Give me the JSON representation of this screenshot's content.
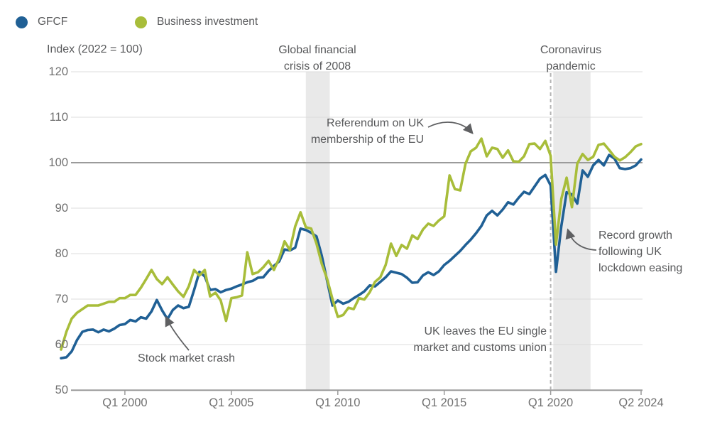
{
  "legend": {
    "items": [
      {
        "label": "GFCF",
        "color": "#206095"
      },
      {
        "label": "Business investment",
        "color": "#a8bd3a"
      }
    ]
  },
  "axis_note": "Index (2022 = 100)",
  "annotations": {
    "global_financial_crisis": "Global financial\ncrisis of 2008",
    "coronavirus_pandemic": "Coronavirus\npandemic",
    "referendum": "Referendum on UK\nmembership of the EU",
    "uk_leaves_eu": "UK leaves the EU single\nmarket and customs union",
    "record_growth": "Record growth\nfollowing UK\nlockdown easing",
    "stock_market_crash": "Stock market crash"
  },
  "chart_data": {
    "type": "line",
    "title": "",
    "xlabel": "",
    "ylabel": "Index (2022 = 100)",
    "x_unit": "quarter",
    "x_start": "Q1 1997",
    "x_end": "Q2 2024",
    "ylim": [
      50,
      120
    ],
    "y_ticks": [
      120,
      110,
      100,
      90,
      80,
      70,
      60,
      50
    ],
    "reference_line_y": 100,
    "grid": true,
    "legend_position": "top-left",
    "x_ticks": [
      {
        "label": "Q1 2000",
        "i": 12
      },
      {
        "label": "Q1 2005",
        "i": 32
      },
      {
        "label": "Q1 2010",
        "i": 52
      },
      {
        "label": "Q1 2015",
        "i": 72
      },
      {
        "label": "Q1 2020",
        "i": 92
      },
      {
        "label": "Q2 2024",
        "i": 109
      }
    ],
    "shaded_bands": [
      {
        "name": "global-financial-crisis",
        "from_i": 46,
        "to_i": 50.5
      },
      {
        "name": "coronavirus-pandemic",
        "from_i": 92.5,
        "to_i": 99.5
      }
    ],
    "dashed_line_i": 92,
    "series": [
      {
        "name": "GFCF",
        "color": "#206095",
        "values": [
          57.0,
          57.2,
          58.5,
          61.0,
          62.8,
          63.2,
          63.3,
          62.7,
          63.3,
          62.9,
          63.5,
          64.3,
          64.5,
          65.4,
          65.1,
          66.0,
          65.7,
          67.3,
          69.8,
          67.5,
          65.6,
          67.6,
          68.6,
          68.0,
          68.3,
          72.0,
          76.0,
          75.0,
          72.0,
          72.2,
          71.5,
          72.0,
          72.3,
          72.8,
          73.2,
          73.7,
          74.0,
          74.7,
          74.8,
          76.2,
          77.3,
          78.3,
          80.9,
          80.7,
          81.3,
          85.5,
          85.2,
          84.6,
          83.8,
          79.5,
          74.0,
          68.6,
          69.7,
          69.0,
          69.4,
          70.2,
          70.9,
          71.7,
          73.0,
          72.8,
          73.8,
          74.8,
          76.1,
          75.8,
          75.5,
          74.7,
          73.6,
          73.7,
          75.2,
          75.9,
          75.3,
          76.1,
          77.5,
          78.4,
          79.5,
          80.6,
          81.9,
          83.1,
          84.5,
          86.1,
          88.4,
          89.4,
          88.4,
          89.7,
          91.3,
          90.8,
          92.3,
          93.6,
          93.1,
          94.8,
          96.5,
          97.3,
          95.0,
          76.0,
          86.0,
          93.5,
          93.0,
          91.0,
          98.3,
          96.9,
          99.4,
          100.6,
          99.4,
          101.7,
          100.9,
          98.8,
          98.6,
          98.8,
          99.4,
          100.7
        ]
      },
      {
        "name": "Business investment",
        "color": "#a8bd3a",
        "values": [
          58.9,
          62.8,
          65.7,
          67.0,
          67.8,
          68.6,
          68.6,
          68.6,
          69.0,
          69.4,
          69.4,
          70.2,
          70.2,
          70.9,
          70.9,
          72.5,
          74.4,
          76.4,
          74.4,
          73.3,
          74.8,
          73.2,
          71.7,
          70.5,
          72.8,
          76.4,
          75.2,
          76.4,
          70.6,
          71.4,
          69.7,
          65.2,
          70.2,
          70.4,
          70.8,
          80.3,
          75.5,
          75.9,
          77.0,
          78.4,
          76.4,
          79.0,
          82.7,
          80.8,
          86.0,
          89.1,
          85.8,
          85.5,
          82.2,
          77.7,
          74.4,
          70.0,
          66.1,
          66.5,
          68.1,
          67.8,
          70.2,
          69.9,
          71.5,
          73.8,
          74.8,
          77.5,
          82.2,
          79.5,
          81.9,
          81.1,
          84.0,
          83.2,
          85.3,
          86.6,
          86.1,
          87.3,
          88.2,
          97.2,
          94.2,
          93.9,
          99.8,
          102.5,
          103.3,
          105.3,
          101.4,
          103.3,
          103.0,
          101.1,
          102.7,
          100.3,
          100.2,
          101.4,
          104.1,
          104.2,
          103.0,
          104.8,
          101.5,
          82.0,
          92.0,
          96.7,
          90.2,
          99.8,
          101.9,
          100.6,
          101.3,
          103.9,
          104.2,
          102.8,
          101.3,
          100.5,
          101.2,
          102.3,
          103.6,
          104.1
        ]
      }
    ]
  },
  "colors": {
    "grid_light": "#dcdcdc",
    "grid_dark": "#9b9b9b",
    "band": "#e9e9e9",
    "dashed": "#b4b4b4",
    "arrow": "#5f6062",
    "tick_text": "#707070",
    "annotation_text": "#58595b"
  }
}
